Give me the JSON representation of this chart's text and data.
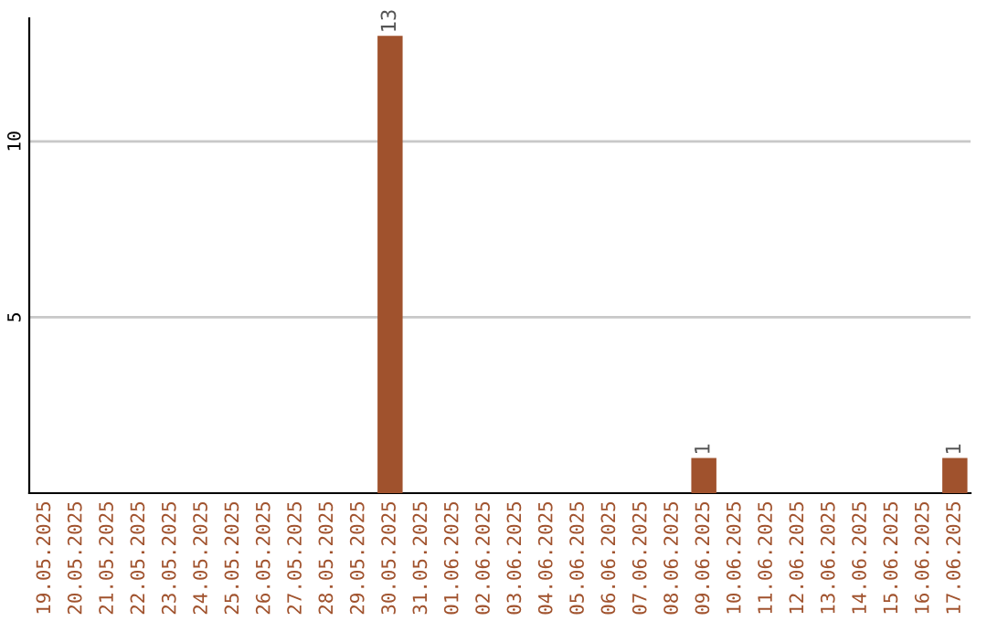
{
  "chart_data": {
    "type": "bar",
    "categories": [
      "19.05.2025",
      "20.05.2025",
      "21.05.2025",
      "22.05.2025",
      "23.05.2025",
      "24.05.2025",
      "25.05.2025",
      "26.05.2025",
      "27.05.2025",
      "28.05.2025",
      "29.05.2025",
      "30.05.2025",
      "31.05.2025",
      "01.06.2025",
      "02.06.2025",
      "03.06.2025",
      "04.06.2025",
      "05.06.2025",
      "06.06.2025",
      "07.06.2025",
      "08.06.2025",
      "09.06.2025",
      "10.06.2025",
      "11.06.2025",
      "12.06.2025",
      "13.06.2025",
      "14.06.2025",
      "15.06.2025",
      "16.06.2025",
      "17.06.2025"
    ],
    "values": [
      0,
      0,
      0,
      0,
      0,
      0,
      0,
      0,
      0,
      0,
      0,
      13,
      0,
      0,
      0,
      0,
      0,
      0,
      0,
      0,
      0,
      1,
      0,
      0,
      0,
      0,
      0,
      0,
      0,
      1
    ],
    "value_labels": [
      null,
      null,
      null,
      null,
      null,
      null,
      null,
      null,
      null,
      null,
      null,
      "13",
      null,
      null,
      null,
      null,
      null,
      null,
      null,
      null,
      null,
      "1",
      null,
      null,
      null,
      null,
      null,
      null,
      null,
      "1"
    ],
    "color": "#a0522d",
    "ylim": [
      0,
      13.5
    ],
    "yticks": [
      5,
      10
    ],
    "grid": "y"
  }
}
